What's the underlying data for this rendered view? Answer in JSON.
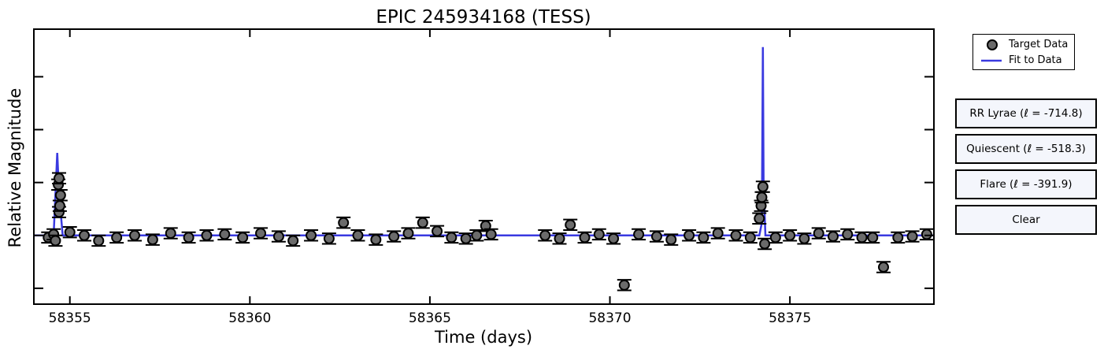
{
  "chart_data": {
    "type": "scatter",
    "title": "EPIC 245934168 (TESS)",
    "xlabel": "Time (days)",
    "ylabel": "Relative Magnitude",
    "xlim": [
      58354.0,
      58379.0
    ],
    "x_ticks": [
      "58355",
      "58360",
      "58365",
      "58370",
      "58375"
    ],
    "ylim": [
      -1.15,
      1.45
    ],
    "y_ticks_unlabeled": [
      -1.0,
      -0.5,
      0.0,
      0.5,
      1.0
    ],
    "grid": false,
    "legend_placement": "right of plot",
    "series": [
      {
        "name": "Target Data",
        "marker": "circle",
        "color": "#6b6b6b",
        "edge_color": "#000000",
        "error": 0.05,
        "points": [
          [
            58354.4,
            -0.52
          ],
          [
            58354.55,
            -0.49
          ],
          [
            58354.6,
            -0.55
          ],
          [
            58354.7,
            -0.28
          ],
          [
            58354.72,
            -0.22
          ],
          [
            58354.74,
            -0.12
          ],
          [
            58354.68,
            -0.02
          ],
          [
            58354.7,
            0.04
          ],
          [
            58355.0,
            -0.47
          ],
          [
            58355.4,
            -0.5
          ],
          [
            58355.8,
            -0.55
          ],
          [
            58356.3,
            -0.52
          ],
          [
            58356.8,
            -0.5
          ],
          [
            58357.3,
            -0.54
          ],
          [
            58357.8,
            -0.48
          ],
          [
            58358.3,
            -0.52
          ],
          [
            58358.8,
            -0.5
          ],
          [
            58359.3,
            -0.49
          ],
          [
            58359.8,
            -0.52
          ],
          [
            58360.3,
            -0.48
          ],
          [
            58360.8,
            -0.51
          ],
          [
            58361.2,
            -0.55
          ],
          [
            58361.7,
            -0.5
          ],
          [
            58362.2,
            -0.53
          ],
          [
            58362.6,
            -0.38
          ],
          [
            58363.0,
            -0.5
          ],
          [
            58363.5,
            -0.54
          ],
          [
            58364.0,
            -0.51
          ],
          [
            58364.4,
            -0.48
          ],
          [
            58364.8,
            -0.38
          ],
          [
            58365.2,
            -0.46
          ],
          [
            58365.6,
            -0.52
          ],
          [
            58366.0,
            -0.53
          ],
          [
            58366.3,
            -0.5
          ],
          [
            58366.55,
            -0.41
          ],
          [
            58366.7,
            -0.49
          ],
          [
            58368.2,
            -0.5
          ],
          [
            58368.6,
            -0.53
          ],
          [
            58368.9,
            -0.4
          ],
          [
            58369.3,
            -0.52
          ],
          [
            58369.7,
            -0.49
          ],
          [
            58370.1,
            -0.53
          ],
          [
            58370.4,
            -0.97
          ],
          [
            58370.8,
            -0.49
          ],
          [
            58371.3,
            -0.51
          ],
          [
            58371.7,
            -0.54
          ],
          [
            58372.2,
            -0.5
          ],
          [
            58372.6,
            -0.52
          ],
          [
            58373.0,
            -0.48
          ],
          [
            58373.5,
            -0.5
          ],
          [
            58373.9,
            -0.52
          ],
          [
            58374.15,
            -0.34
          ],
          [
            58374.2,
            -0.22
          ],
          [
            58374.22,
            -0.14
          ],
          [
            58374.25,
            -0.04
          ],
          [
            58374.3,
            -0.58
          ],
          [
            58374.6,
            -0.52
          ],
          [
            58375.0,
            -0.5
          ],
          [
            58375.4,
            -0.53
          ],
          [
            58375.8,
            -0.48
          ],
          [
            58376.2,
            -0.51
          ],
          [
            58376.6,
            -0.49
          ],
          [
            58377.0,
            -0.52
          ],
          [
            58377.3,
            -0.52
          ],
          [
            58377.6,
            -0.8
          ],
          [
            58378.0,
            -0.52
          ],
          [
            58378.4,
            -0.51
          ],
          [
            58378.8,
            -0.49
          ]
        ]
      },
      {
        "name": "Fit to Data",
        "color": "#3a3ae0",
        "points": [
          [
            58354.0,
            -0.5
          ],
          [
            58354.55,
            -0.5
          ],
          [
            58354.65,
            0.28
          ],
          [
            58354.7,
            -0.1
          ],
          [
            58354.8,
            -0.5
          ],
          [
            58366.8,
            -0.5
          ],
          [
            58368.0,
            -0.5
          ],
          [
            58374.15,
            -0.5
          ],
          [
            58374.22,
            -0.38
          ],
          [
            58374.25,
            1.28
          ],
          [
            58374.27,
            -0.02
          ],
          [
            58374.32,
            -0.5
          ],
          [
            58379.0,
            -0.5
          ]
        ]
      }
    ]
  },
  "legend": {
    "items": [
      {
        "label": "Target Data"
      },
      {
        "label": "Fit to Data"
      }
    ]
  },
  "buttons": {
    "rr_lyrae": "RR Lyrae (ℓ = -714.8)",
    "quiescent": "Quiescent (ℓ = -518.3)",
    "flare": "Flare (ℓ = -391.9)",
    "clear": "Clear"
  }
}
